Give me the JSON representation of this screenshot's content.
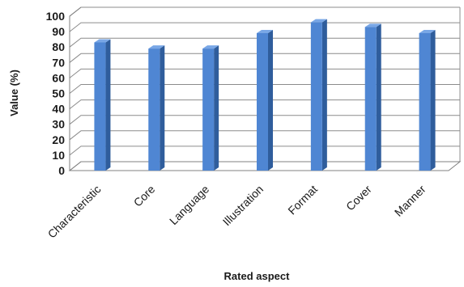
{
  "chart_data": {
    "type": "bar",
    "categories": [
      "Characteristic",
      "Core",
      "Language",
      "Illustration",
      "Format",
      "Cover",
      "Manner"
    ],
    "values": [
      83,
      79,
      79,
      89,
      96,
      93,
      89
    ],
    "xlabel": "Rated aspect",
    "ylabel": "Value (%)",
    "ylim": [
      0,
      100
    ],
    "yticks": [
      0,
      10,
      20,
      30,
      40,
      50,
      60,
      70,
      80,
      90,
      100
    ],
    "grid": true,
    "style": "3d-column"
  },
  "colors": {
    "bar_front": "#4f86d3",
    "bar_side": "#2f5d9c",
    "bar_top": "#79a7e6",
    "grid": "#8c8c8c",
    "axis": "#808080"
  }
}
